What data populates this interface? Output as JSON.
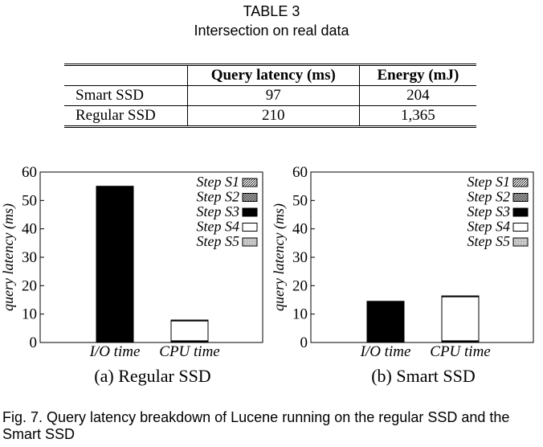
{
  "table": {
    "label": "TABLE 3",
    "caption": "Intersection on real data",
    "headers": [
      "",
      "Query latency (ms)",
      "Energy (mJ)"
    ],
    "rows": [
      {
        "name": "Smart SSD",
        "latency": "97",
        "energy": "204"
      },
      {
        "name": "Regular SSD",
        "latency": "210",
        "energy": "1,365"
      }
    ]
  },
  "chart_data": [
    {
      "type": "bar",
      "stacked": true,
      "caption": "(a) Regular SSD",
      "ylabel": "query latency (ms)",
      "ylim": [
        0,
        60
      ],
      "yticks": [
        "0",
        "10",
        "20",
        "30",
        "40",
        "50",
        "60"
      ],
      "categories": [
        "I/O time",
        "CPU time"
      ],
      "legend_position": "top-right",
      "series": [
        {
          "name": "Step S1",
          "values": [
            0,
            0.3
          ]
        },
        {
          "name": "Step S2",
          "values": [
            0,
            0.3
          ]
        },
        {
          "name": "Step S3",
          "values": [
            55,
            0
          ]
        },
        {
          "name": "Step S4",
          "values": [
            0,
            7
          ]
        },
        {
          "name": "Step S5",
          "values": [
            0,
            0.3
          ]
        }
      ]
    },
    {
      "type": "bar",
      "stacked": true,
      "caption": "(b) Smart SSD",
      "ylabel": "query latency (ms)",
      "ylim": [
        0,
        60
      ],
      "yticks": [
        "0",
        "10",
        "20",
        "30",
        "40",
        "50",
        "60"
      ],
      "categories": [
        "I/O time",
        "CPU time"
      ],
      "legend_position": "top-right",
      "series": [
        {
          "name": "Step S1",
          "values": [
            0,
            0.3
          ]
        },
        {
          "name": "Step S2",
          "values": [
            0,
            0.3
          ]
        },
        {
          "name": "Step S3",
          "values": [
            14.5,
            0
          ]
        },
        {
          "name": "Step S4",
          "values": [
            0,
            15.5
          ]
        },
        {
          "name": "Step S5",
          "values": [
            0,
            0.3
          ]
        }
      ]
    }
  ],
  "figure_caption": "Fig. 7. Query latency breakdown of Lucene running on the regular SSD and the Smart SSD"
}
